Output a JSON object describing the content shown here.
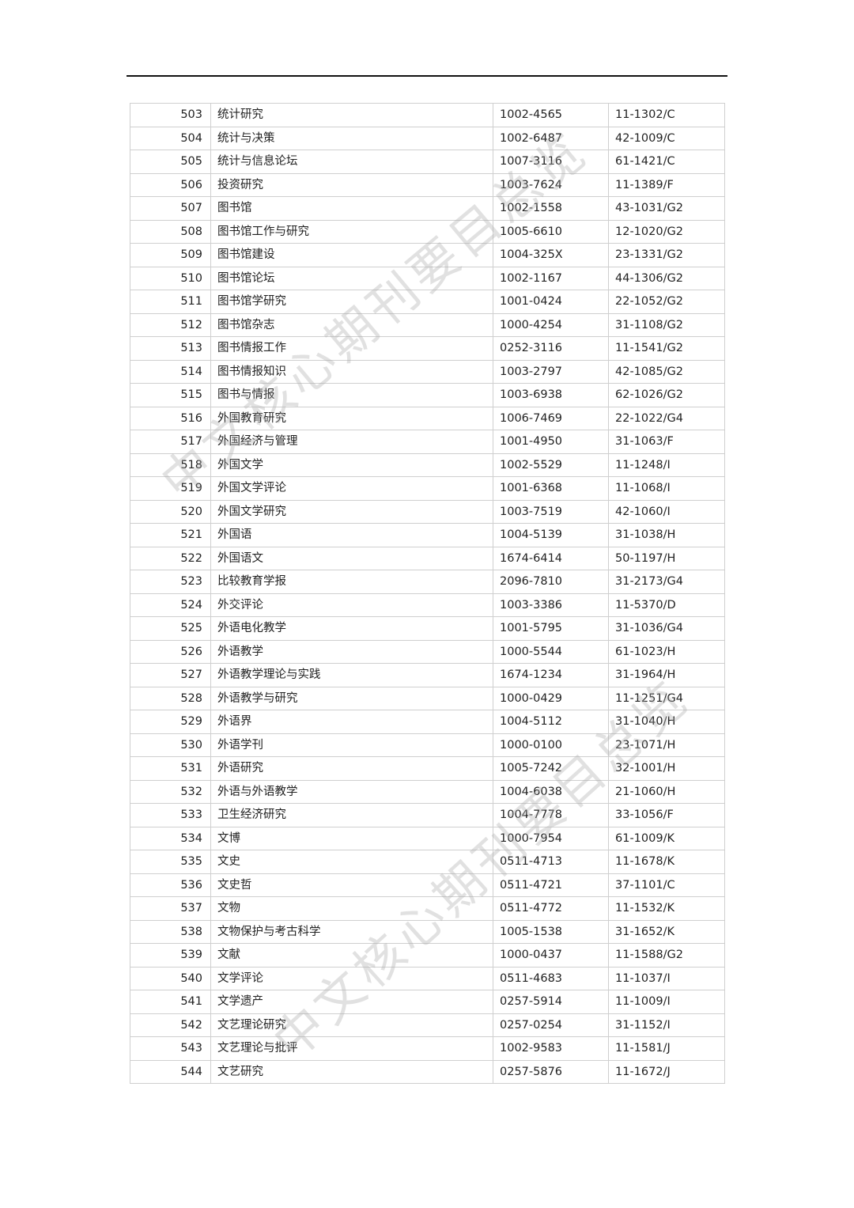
{
  "watermark": "中文核心期刊要目总览",
  "rows": [
    [
      "503",
      "统计研究",
      "1002-4565",
      "11-1302/C"
    ],
    [
      "504",
      "统计与决策",
      "1002-6487",
      "42-1009/C"
    ],
    [
      "505",
      "统计与信息论坛",
      "1007-3116",
      "61-1421/C"
    ],
    [
      "506",
      "投资研究",
      "1003-7624",
      "11-1389/F"
    ],
    [
      "507",
      "图书馆",
      "1002-1558",
      "43-1031/G2"
    ],
    [
      "508",
      "图书馆工作与研究",
      "1005-6610",
      "12-1020/G2"
    ],
    [
      "509",
      "图书馆建设",
      "1004-325X",
      "23-1331/G2"
    ],
    [
      "510",
      "图书馆论坛",
      "1002-1167",
      "44-1306/G2"
    ],
    [
      "511",
      "图书馆学研究",
      "1001-0424",
      "22-1052/G2"
    ],
    [
      "512",
      "图书馆杂志",
      "1000-4254",
      "31-1108/G2"
    ],
    [
      "513",
      "图书情报工作",
      "0252-3116",
      "11-1541/G2"
    ],
    [
      "514",
      "图书情报知识",
      "1003-2797",
      "42-1085/G2"
    ],
    [
      "515",
      "图书与情报",
      "1003-6938",
      "62-1026/G2"
    ],
    [
      "516",
      "外国教育研究",
      "1006-7469",
      "22-1022/G4"
    ],
    [
      "517",
      "外国经济与管理",
      "1001-4950",
      "31-1063/F"
    ],
    [
      "518",
      "外国文学",
      "1002-5529",
      "11-1248/I"
    ],
    [
      "519",
      "外国文学评论",
      "1001-6368",
      "11-1068/I"
    ],
    [
      "520",
      "外国文学研究",
      "1003-7519",
      "42-1060/I"
    ],
    [
      "521",
      "外国语",
      "1004-5139",
      "31-1038/H"
    ],
    [
      "522",
      "外国语文",
      "1674-6414",
      "50-1197/H"
    ],
    [
      "523",
      "比较教育学报",
      "2096-7810",
      "31-2173/G4"
    ],
    [
      "524",
      "外交评论",
      "1003-3386",
      "11-5370/D"
    ],
    [
      "525",
      "外语电化教学",
      "1001-5795",
      "31-1036/G4"
    ],
    [
      "526",
      "外语教学",
      "1000-5544",
      "61-1023/H"
    ],
    [
      "527",
      "外语教学理论与实践",
      "1674-1234",
      "31-1964/H"
    ],
    [
      "528",
      "外语教学与研究",
      "1000-0429",
      "11-1251/G4"
    ],
    [
      "529",
      "外语界",
      "1004-5112",
      "31-1040/H"
    ],
    [
      "530",
      "外语学刊",
      "1000-0100",
      "23-1071/H"
    ],
    [
      "531",
      "外语研究",
      "1005-7242",
      "32-1001/H"
    ],
    [
      "532",
      "外语与外语教学",
      "1004-6038",
      "21-1060/H"
    ],
    [
      "533",
      "卫生经济研究",
      "1004-7778",
      "33-1056/F"
    ],
    [
      "534",
      "文博",
      "1000-7954",
      "61-1009/K"
    ],
    [
      "535",
      "文史",
      "0511-4713",
      "11-1678/K"
    ],
    [
      "536",
      "文史哲",
      "0511-4721",
      "37-1101/C"
    ],
    [
      "537",
      "文物",
      "0511-4772",
      "11-1532/K"
    ],
    [
      "538",
      "文物保护与考古科学",
      "1005-1538",
      "31-1652/K"
    ],
    [
      "539",
      "文献",
      "1000-0437",
      "11-1588/G2"
    ],
    [
      "540",
      "文学评论",
      "0511-4683",
      "11-1037/I"
    ],
    [
      "541",
      "文学遗产",
      "0257-5914",
      "11-1009/I"
    ],
    [
      "542",
      "文艺理论研究",
      "0257-0254",
      "31-1152/I"
    ],
    [
      "543",
      "文艺理论与批评",
      "1002-9583",
      "11-1581/J"
    ],
    [
      "544",
      "文艺研究",
      "0257-5876",
      "11-1672/J"
    ]
  ]
}
